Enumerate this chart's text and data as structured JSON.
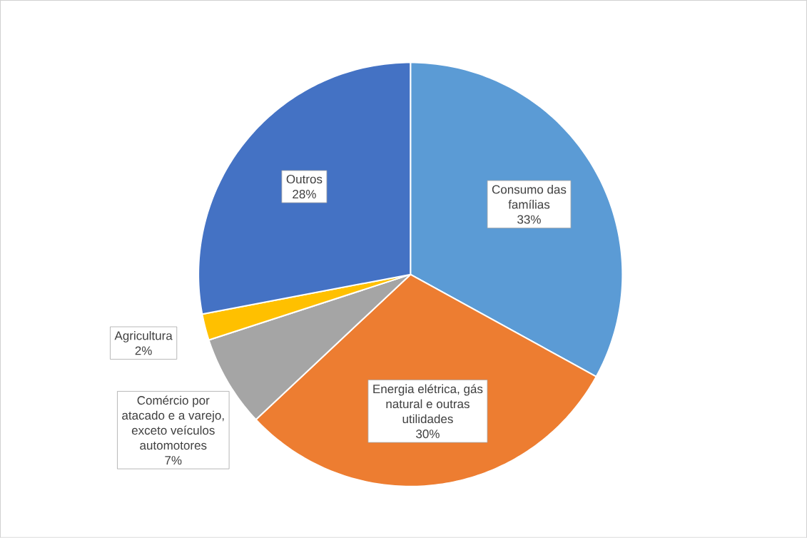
{
  "chart_data": {
    "type": "pie",
    "categories": [
      "Consumo das famílias",
      "Energia elétrica, gás natural e outras utilidades",
      "Comércio por atacado e a varejo, exceto veículos automotores",
      "Agricultura",
      "Outros"
    ],
    "values": [
      33,
      30,
      7,
      2,
      28
    ],
    "value_labels": [
      "33%",
      "30%",
      "7%",
      "2%",
      "28%"
    ],
    "colors": [
      "#5b9bd5",
      "#ed7d31",
      "#a5a5a5",
      "#ffc000",
      "#4472c4"
    ]
  }
}
